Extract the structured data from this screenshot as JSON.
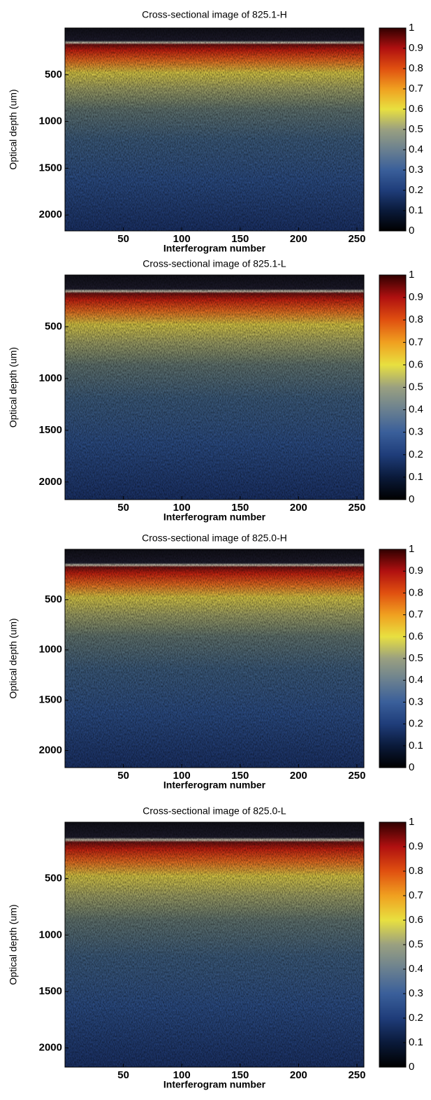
{
  "chart_data": [
    {
      "type": "heatmap",
      "title": "Cross-sectional image of 825.1-H",
      "xlabel": "Interferogram number",
      "ylabel": "Optical depth (um)",
      "xlim": [
        0,
        256
      ],
      "xticks": [
        50,
        100,
        150,
        200,
        250
      ],
      "ylim": [
        0,
        2170
      ],
      "yticks": [
        500,
        1000,
        1500,
        2000
      ],
      "colorbar": {
        "clim": [
          0,
          1
        ],
        "ticks": [
          0,
          0.1,
          0.2,
          0.3,
          0.4,
          0.5,
          0.6,
          0.7,
          0.8,
          0.9,
          1
        ],
        "colormap": [
          "#000000",
          "#0a1a3a",
          "#1f3d7a",
          "#3a5f9a",
          "#6a8090",
          "#9aa080",
          "#e8e040",
          "#f0a020",
          "#e05010",
          "#b01010",
          "#300000"
        ]
      }
    },
    {
      "type": "heatmap",
      "title": "Cross-sectional image of 825.1-L",
      "xlabel": "Interferogram number",
      "ylabel": "Optical depth (um)",
      "xlim": [
        0,
        256
      ],
      "xticks": [
        50,
        100,
        150,
        200,
        250
      ],
      "ylim": [
        0,
        2170
      ],
      "yticks": [
        500,
        1000,
        1500,
        2000
      ],
      "colorbar": {
        "clim": [
          0,
          1
        ],
        "ticks": [
          0,
          0.1,
          0.2,
          0.3,
          0.4,
          0.5,
          0.6,
          0.7,
          0.8,
          0.9,
          1
        ],
        "colormap": [
          "#000000",
          "#0a1a3a",
          "#1f3d7a",
          "#3a5f9a",
          "#6a8090",
          "#9aa080",
          "#e8e040",
          "#f0a020",
          "#e05010",
          "#b01010",
          "#300000"
        ]
      }
    },
    {
      "type": "heatmap",
      "title": "Cross-sectional image of 825.0-H",
      "xlabel": "Interferogram number",
      "ylabel": "Optical depth (um)",
      "xlim": [
        0,
        256
      ],
      "xticks": [
        50,
        100,
        150,
        200,
        250
      ],
      "ylim": [
        0,
        2170
      ],
      "yticks": [
        500,
        1000,
        1500,
        2000
      ],
      "colorbar": {
        "clim": [
          0,
          1
        ],
        "ticks": [
          0,
          0.1,
          0.2,
          0.3,
          0.4,
          0.5,
          0.6,
          0.7,
          0.8,
          0.9,
          1
        ],
        "colormap": [
          "#000000",
          "#0a1a3a",
          "#1f3d7a",
          "#3a5f9a",
          "#6a8090",
          "#9aa080",
          "#e8e040",
          "#f0a020",
          "#e05010",
          "#b01010",
          "#300000"
        ]
      }
    },
    {
      "type": "heatmap",
      "title": "Cross-sectional image of 825.0-L",
      "xlabel": "Interferogram number",
      "ylabel": "Optical depth (um)",
      "xlim": [
        0,
        256
      ],
      "xticks": [
        50,
        100,
        150,
        200,
        250
      ],
      "ylim": [
        0,
        2170
      ],
      "yticks": [
        500,
        1000,
        1500,
        2000
      ],
      "colorbar": {
        "clim": [
          0,
          1
        ],
        "ticks": [
          0,
          0.1,
          0.2,
          0.3,
          0.4,
          0.5,
          0.6,
          0.7,
          0.8,
          0.9,
          1
        ],
        "colormap": [
          "#000000",
          "#0a1a3a",
          "#1f3d7a",
          "#3a5f9a",
          "#6a8090",
          "#9aa080",
          "#e8e040",
          "#f0a020",
          "#e05010",
          "#b01010",
          "#300000"
        ]
      }
    }
  ]
}
